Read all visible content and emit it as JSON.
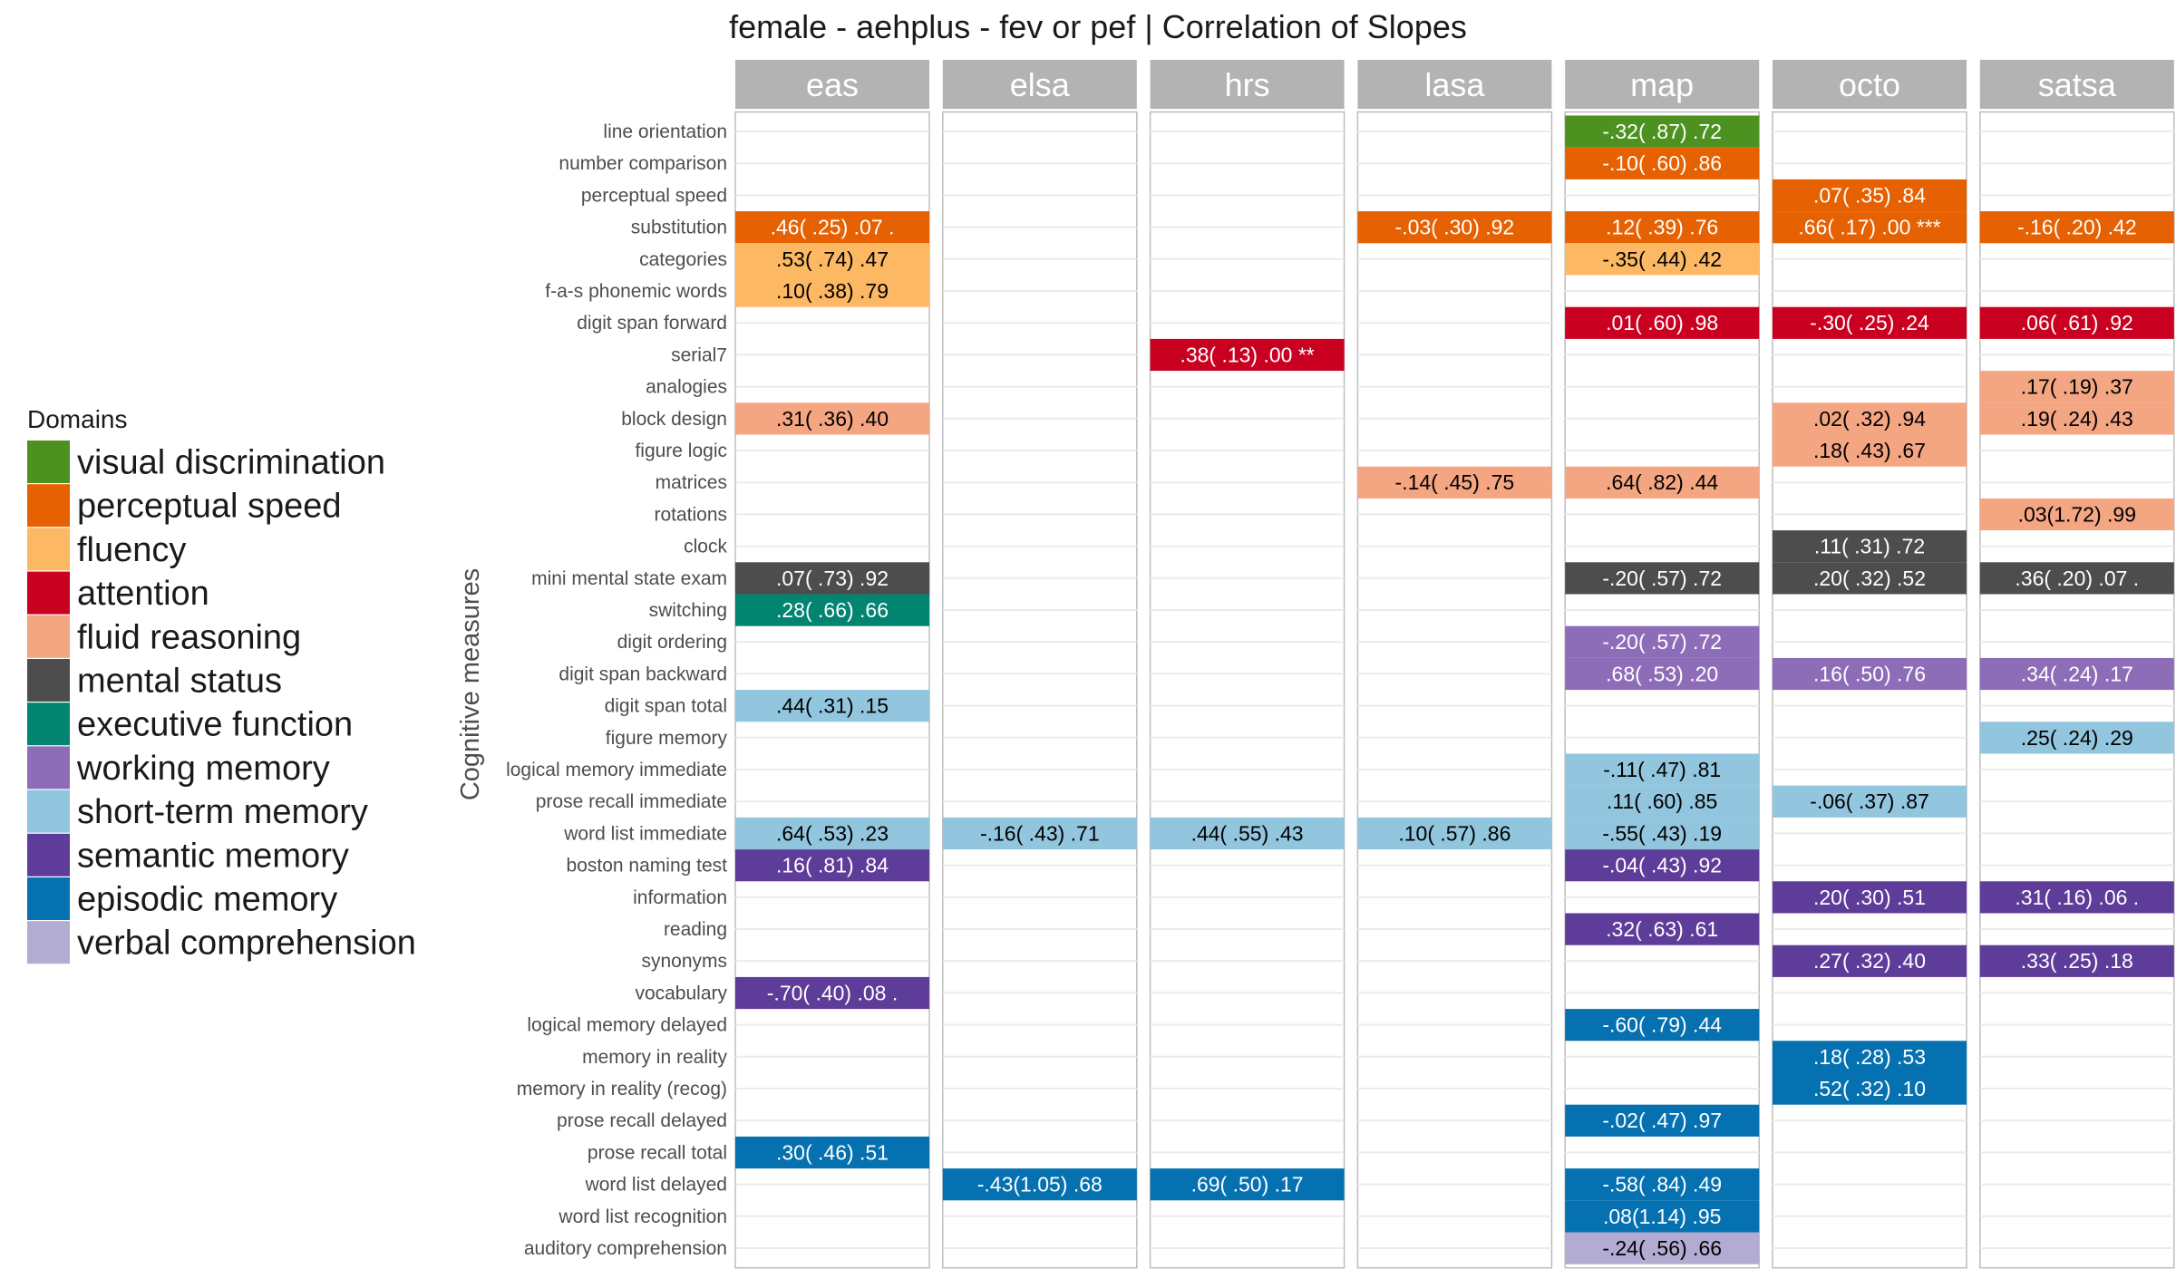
{
  "chart_data": {
    "type": "heatmap",
    "title": "female - aehplus - fev or pef | Correlation of Slopes",
    "ylabel": "Cognitive measures",
    "facets": [
      "eas",
      "elsa",
      "hrs",
      "lasa",
      "map",
      "octo",
      "satsa"
    ],
    "measures": [
      "line orientation",
      "number comparison",
      "perceptual speed",
      "substitution",
      "categories",
      "f-a-s phonemic words",
      "digit span forward",
      "serial7",
      "analogies",
      "block design",
      "figure logic",
      "matrices",
      "rotations",
      "clock",
      "mini mental state exam",
      "switching",
      "digit ordering",
      "digit span backward",
      "digit span total",
      "figure memory",
      "logical memory immediate",
      "prose recall immediate",
      "word list immediate",
      "boston naming test",
      "information",
      "reading",
      "synonyms",
      "vocabulary",
      "logical memory delayed",
      "memory in reality",
      "memory in reality (recog)",
      "prose recall delayed",
      "prose recall total",
      "word list delayed",
      "word list recognition",
      "auditory comprehension"
    ],
    "legend": {
      "title": "Domains",
      "placement": "left",
      "entries": [
        {
          "name": "visual discrimination",
          "color": "#4D9221"
        },
        {
          "name": "perceptual speed",
          "color": "#E66101"
        },
        {
          "name": "fluency",
          "color": "#FDB863"
        },
        {
          "name": "attention",
          "color": "#CA0020"
        },
        {
          "name": "fluid reasoning",
          "color": "#F4A582"
        },
        {
          "name": "mental status",
          "color": "#4D4D4D"
        },
        {
          "name": "executive function",
          "color": "#018571"
        },
        {
          "name": "working memory",
          "color": "#8E6DB8"
        },
        {
          "name": "short-term memory",
          "color": "#92C5DE"
        },
        {
          "name": "semantic memory",
          "color": "#5E3C99"
        },
        {
          "name": "episodic memory",
          "color": "#0571B0"
        },
        {
          "name": "verbal comprehension",
          "color": "#B2ABD2"
        }
      ]
    },
    "light_domains": [
      "fluency",
      "fluid reasoning",
      "short-term memory",
      "verbal comprehension"
    ],
    "cells": [
      {
        "facet": "eas",
        "measure": "substitution",
        "domain": "perceptual speed",
        "label": ".46( .25) .07 ."
      },
      {
        "facet": "eas",
        "measure": "categories",
        "domain": "fluency",
        "label": ".53( .74) .47"
      },
      {
        "facet": "eas",
        "measure": "f-a-s phonemic words",
        "domain": "fluency",
        "label": ".10( .38) .79"
      },
      {
        "facet": "eas",
        "measure": "block design",
        "domain": "fluid reasoning",
        "label": ".31( .36) .40"
      },
      {
        "facet": "eas",
        "measure": "mini mental state exam",
        "domain": "mental status",
        "label": ".07( .73) .92"
      },
      {
        "facet": "eas",
        "measure": "switching",
        "domain": "executive function",
        "label": ".28( .66) .66"
      },
      {
        "facet": "eas",
        "measure": "digit span total",
        "domain": "short-term memory",
        "label": ".44( .31) .15"
      },
      {
        "facet": "eas",
        "measure": "word list immediate",
        "domain": "short-term memory",
        "label": ".64( .53) .23"
      },
      {
        "facet": "eas",
        "measure": "boston naming test",
        "domain": "semantic memory",
        "label": ".16( .81) .84"
      },
      {
        "facet": "eas",
        "measure": "vocabulary",
        "domain": "semantic memory",
        "label": "-.70( .40) .08 ."
      },
      {
        "facet": "eas",
        "measure": "prose recall total",
        "domain": "episodic memory",
        "label": ".30( .46) .51"
      },
      {
        "facet": "elsa",
        "measure": "word list immediate",
        "domain": "short-term memory",
        "label": "-.16( .43) .71"
      },
      {
        "facet": "elsa",
        "measure": "word list delayed",
        "domain": "episodic memory",
        "label": "-.43(1.05) .68"
      },
      {
        "facet": "hrs",
        "measure": "serial7",
        "domain": "attention",
        "label": ".38( .13) .00 **"
      },
      {
        "facet": "hrs",
        "measure": "word list immediate",
        "domain": "short-term memory",
        "label": ".44( .55) .43"
      },
      {
        "facet": "hrs",
        "measure": "word list delayed",
        "domain": "episodic memory",
        "label": ".69( .50) .17"
      },
      {
        "facet": "lasa",
        "measure": "substitution",
        "domain": "perceptual speed",
        "label": "-.03( .30) .92"
      },
      {
        "facet": "lasa",
        "measure": "matrices",
        "domain": "fluid reasoning",
        "label": "-.14( .45) .75"
      },
      {
        "facet": "lasa",
        "measure": "word list immediate",
        "domain": "short-term memory",
        "label": ".10( .57) .86"
      },
      {
        "facet": "map",
        "measure": "line orientation",
        "domain": "visual discrimination",
        "label": "-.32( .87) .72"
      },
      {
        "facet": "map",
        "measure": "number comparison",
        "domain": "perceptual speed",
        "label": "-.10( .60) .86"
      },
      {
        "facet": "map",
        "measure": "substitution",
        "domain": "perceptual speed",
        "label": ".12( .39) .76"
      },
      {
        "facet": "map",
        "measure": "categories",
        "domain": "fluency",
        "label": "-.35( .44) .42"
      },
      {
        "facet": "map",
        "measure": "digit span forward",
        "domain": "attention",
        "label": ".01( .60) .98"
      },
      {
        "facet": "map",
        "measure": "matrices",
        "domain": "fluid reasoning",
        "label": ".64( .82) .44"
      },
      {
        "facet": "map",
        "measure": "mini mental state exam",
        "domain": "mental status",
        "label": "-.20( .57) .72"
      },
      {
        "facet": "map",
        "measure": "digit ordering",
        "domain": "working memory",
        "label": "-.20( .57) .72"
      },
      {
        "facet": "map",
        "measure": "digit span backward",
        "domain": "working memory",
        "label": ".68( .53) .20"
      },
      {
        "facet": "map",
        "measure": "logical memory immediate",
        "domain": "short-term memory",
        "label": "-.11( .47) .81"
      },
      {
        "facet": "map",
        "measure": "prose recall immediate",
        "domain": "short-term memory",
        "label": ".11( .60) .85"
      },
      {
        "facet": "map",
        "measure": "word list immediate",
        "domain": "short-term memory",
        "label": "-.55( .43) .19"
      },
      {
        "facet": "map",
        "measure": "boston naming test",
        "domain": "semantic memory",
        "label": "-.04( .43) .92"
      },
      {
        "facet": "map",
        "measure": "reading",
        "domain": "semantic memory",
        "label": ".32( .63) .61"
      },
      {
        "facet": "map",
        "measure": "logical memory delayed",
        "domain": "episodic memory",
        "label": "-.60( .79) .44"
      },
      {
        "facet": "map",
        "measure": "prose recall delayed",
        "domain": "episodic memory",
        "label": "-.02( .47) .97"
      },
      {
        "facet": "map",
        "measure": "word list delayed",
        "domain": "episodic memory",
        "label": "-.58( .84) .49"
      },
      {
        "facet": "map",
        "measure": "word list recognition",
        "domain": "episodic memory",
        "label": ".08(1.14) .95"
      },
      {
        "facet": "map",
        "measure": "auditory comprehension",
        "domain": "verbal comprehension",
        "label": "-.24( .56) .66"
      },
      {
        "facet": "octo",
        "measure": "perceptual speed",
        "domain": "perceptual speed",
        "label": ".07( .35) .84"
      },
      {
        "facet": "octo",
        "measure": "substitution",
        "domain": "perceptual speed",
        "label": ".66( .17) .00 ***"
      },
      {
        "facet": "octo",
        "measure": "digit span forward",
        "domain": "attention",
        "label": "-.30( .25) .24"
      },
      {
        "facet": "octo",
        "measure": "block design",
        "domain": "fluid reasoning",
        "label": ".02( .32) .94"
      },
      {
        "facet": "octo",
        "measure": "figure logic",
        "domain": "fluid reasoning",
        "label": ".18( .43) .67"
      },
      {
        "facet": "octo",
        "measure": "clock",
        "domain": "mental status",
        "label": ".11( .31) .72"
      },
      {
        "facet": "octo",
        "measure": "mini mental state exam",
        "domain": "mental status",
        "label": ".20( .32) .52"
      },
      {
        "facet": "octo",
        "measure": "digit span backward",
        "domain": "working memory",
        "label": ".16( .50) .76"
      },
      {
        "facet": "octo",
        "measure": "prose recall immediate",
        "domain": "short-term memory",
        "label": "-.06( .37) .87"
      },
      {
        "facet": "octo",
        "measure": "information",
        "domain": "semantic memory",
        "label": ".20( .30) .51"
      },
      {
        "facet": "octo",
        "measure": "synonyms",
        "domain": "semantic memory",
        "label": ".27( .32) .40"
      },
      {
        "facet": "octo",
        "measure": "memory in reality",
        "domain": "episodic memory",
        "label": ".18( .28) .53"
      },
      {
        "facet": "octo",
        "measure": "memory in reality (recog)",
        "domain": "episodic memory",
        "label": ".52( .32) .10"
      },
      {
        "facet": "satsa",
        "measure": "substitution",
        "domain": "perceptual speed",
        "label": "-.16( .20) .42"
      },
      {
        "facet": "satsa",
        "measure": "digit span forward",
        "domain": "attention",
        "label": ".06( .61) .92"
      },
      {
        "facet": "satsa",
        "measure": "analogies",
        "domain": "fluid reasoning",
        "label": ".17( .19) .37"
      },
      {
        "facet": "satsa",
        "measure": "block design",
        "domain": "fluid reasoning",
        "label": ".19( .24) .43"
      },
      {
        "facet": "satsa",
        "measure": "rotations",
        "domain": "fluid reasoning",
        "label": ".03(1.72) .99"
      },
      {
        "facet": "satsa",
        "measure": "mini mental state exam",
        "domain": "mental status",
        "label": ".36( .20) .07 ."
      },
      {
        "facet": "satsa",
        "measure": "digit span backward",
        "domain": "working memory",
        "label": ".34( .24) .17"
      },
      {
        "facet": "satsa",
        "measure": "figure memory",
        "domain": "short-term memory",
        "label": ".25( .24) .29"
      },
      {
        "facet": "satsa",
        "measure": "information",
        "domain": "semantic memory",
        "label": ".31( .16) .06 ."
      },
      {
        "facet": "satsa",
        "measure": "synonyms",
        "domain": "semantic memory",
        "label": ".33( .25) .18"
      }
    ]
  }
}
